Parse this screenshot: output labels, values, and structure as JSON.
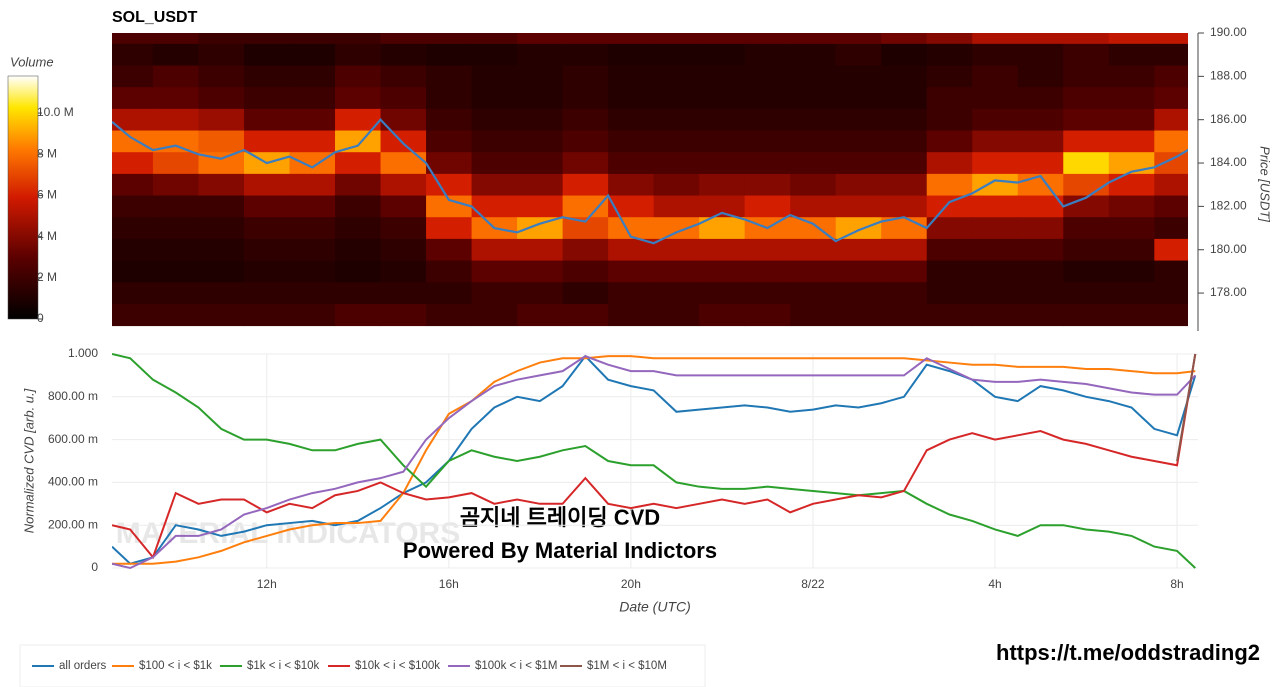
{
  "chart_data": [
    {
      "type": "heatmap",
      "title": "SOL_USDT",
      "y_label": "Price [USDT]",
      "colorbar_title": "Volume",
      "xlim": [
        8.6,
        32.46
      ],
      "ylim": [
        176.25,
        190
      ],
      "yticks": [
        {
          "value": 178,
          "label": "178.00"
        },
        {
          "value": 180,
          "label": "180.00"
        },
        {
          "value": 182,
          "label": "182.00"
        },
        {
          "value": 184,
          "label": "184.00"
        },
        {
          "value": 186,
          "label": "186.00"
        },
        {
          "value": 188,
          "label": "188.00"
        },
        {
          "value": 190,
          "label": "190.00"
        }
      ],
      "colorbar_lim": [
        0,
        11.8
      ],
      "colorbar_ticks": [
        0,
        {
          "value": 2,
          "label": "2 M"
        },
        {
          "value": 4,
          "label": "4 M"
        },
        {
          "value": 6,
          "label": "6 M"
        },
        {
          "value": 8,
          "label": "8 M"
        },
        {
          "value": 10,
          "label": "10.0 M"
        }
      ],
      "colorscale": [
        [
          0,
          "#000000"
        ],
        [
          0.25,
          "#5a0000"
        ],
        [
          0.5,
          "#d11a00"
        ],
        [
          0.7,
          "#ff7a00"
        ],
        [
          0.87,
          "#ffe600"
        ],
        [
          1,
          "#ffffff"
        ]
      ],
      "heat_x": [
        9,
        10,
        11,
        12,
        13,
        14,
        15,
        16,
        17,
        18,
        19,
        20,
        21,
        22,
        23,
        24,
        25,
        26,
        27,
        28,
        29,
        30,
        31,
        32
      ],
      "heat_y": [
        190,
        189,
        188,
        187,
        186,
        185,
        184,
        183,
        182,
        181,
        180,
        179,
        178,
        177
      ],
      "z": [
        [
          2.5,
          2.5,
          2,
          2,
          2,
          2,
          2.5,
          2.5,
          2.5,
          3,
          3,
          3,
          3,
          3,
          3,
          3,
          3,
          3.5,
          4,
          5,
          5,
          5,
          5.5,
          5.5
        ],
        [
          1.5,
          1.2,
          1.5,
          1,
          1,
          1.5,
          1.2,
          1,
          1,
          1.2,
          1.2,
          1,
          1,
          1,
          1.2,
          1.2,
          1.5,
          1,
          1.2,
          1.5,
          1.5,
          2,
          1.5,
          1.5
        ],
        [
          2,
          2.5,
          2,
          1.5,
          1.5,
          2.5,
          2,
          1.5,
          1.2,
          1.2,
          1.5,
          1.2,
          1.2,
          1.2,
          1.2,
          1.2,
          1.2,
          1.2,
          1.5,
          2,
          1.5,
          2,
          2,
          2.5
        ],
        [
          3,
          3,
          2.5,
          2,
          2,
          3,
          2.5,
          1.5,
          1.2,
          1.2,
          1.5,
          1.2,
          1.2,
          1.2,
          1.2,
          1.2,
          1.2,
          1.2,
          2,
          2,
          2,
          2.5,
          2.5,
          3
        ],
        [
          5,
          5,
          4.5,
          3,
          3,
          6,
          3.5,
          2,
          1.5,
          1.5,
          2,
          1.5,
          1.5,
          1.5,
          1.5,
          1.5,
          1.5,
          1.5,
          2,
          2.5,
          2.5,
          3,
          3,
          5
        ],
        [
          8,
          8,
          7.5,
          6,
          6,
          9,
          6,
          2.5,
          2,
          2,
          2.5,
          2,
          2,
          2,
          2,
          2,
          2,
          2,
          3,
          4,
          4,
          6,
          6,
          8
        ],
        [
          6,
          7,
          8,
          9,
          8,
          6,
          8,
          3.5,
          2.5,
          2.5,
          3.5,
          2.5,
          2.5,
          2.5,
          2.5,
          2.5,
          2.5,
          2.5,
          5,
          6,
          6,
          10,
          9,
          7
        ],
        [
          3,
          3.5,
          4,
          5,
          5,
          3.5,
          5,
          6,
          4,
          4,
          6,
          4,
          3.5,
          4,
          4,
          3.5,
          4,
          4,
          8,
          9,
          8,
          7,
          6,
          5
        ],
        [
          2,
          2,
          2,
          3,
          3,
          2,
          3,
          8,
          6,
          6,
          8,
          6,
          5,
          5,
          6,
          5,
          5,
          5,
          6,
          6,
          6,
          4,
          3.5,
          3
        ],
        [
          1.5,
          1.5,
          1.5,
          2,
          2,
          1.5,
          2,
          6,
          8,
          9,
          7,
          8,
          8,
          9,
          8,
          8,
          9,
          8,
          4,
          4,
          4,
          2.5,
          2.5,
          2
        ],
        [
          1.2,
          1.2,
          1.2,
          1.5,
          1.5,
          1.2,
          1.5,
          3,
          5,
          5,
          4,
          5,
          5,
          5,
          5,
          5,
          5,
          5,
          2.5,
          2.5,
          2.5,
          2,
          2,
          6
        ],
        [
          1,
          1,
          1,
          1.2,
          1.2,
          1,
          1.2,
          2,
          3,
          3,
          2.5,
          3,
          3,
          3,
          3,
          3,
          3,
          3,
          1.5,
          1.5,
          1.5,
          1.2,
          1.2,
          1.5
        ],
        [
          1.5,
          1.5,
          1.5,
          1.5,
          1.5,
          1.5,
          1.5,
          1.5,
          2,
          2,
          1.5,
          2,
          2,
          2,
          2,
          2,
          2,
          2,
          1.5,
          1.5,
          1.5,
          1.5,
          1.5,
          1.5
        ],
        [
          2,
          2,
          2,
          2,
          2,
          2.5,
          2.5,
          2,
          2,
          2.5,
          2.5,
          2,
          2,
          2.5,
          2.5,
          2,
          2,
          2,
          2,
          2,
          2,
          2,
          2,
          2
        ]
      ],
      "x": [
        8.6,
        9,
        9.5,
        10,
        10.5,
        11,
        11.5,
        12,
        12.5,
        13,
        13.5,
        14,
        14.5,
        15,
        15.5,
        16,
        16.5,
        17,
        17.5,
        18,
        18.5,
        19,
        19.5,
        20,
        20.5,
        21,
        21.5,
        22,
        22.5,
        23,
        23.5,
        24,
        24.5,
        25,
        25.5,
        26,
        26.5,
        27,
        27.5,
        28,
        28.5,
        29,
        29.5,
        30,
        30.5,
        31,
        31.5,
        32,
        32.4
      ],
      "line_color": "#3a7dc0",
      "values": [
        185.9,
        185.2,
        184.6,
        184.8,
        184.4,
        184.2,
        184.6,
        184.0,
        184.3,
        183.8,
        184.5,
        184.8,
        186.0,
        184.9,
        184.0,
        182.3,
        182.0,
        181.0,
        180.8,
        181.2,
        181.5,
        181.3,
        182.5,
        180.6,
        180.3,
        180.8,
        181.2,
        181.7,
        181.4,
        181.0,
        181.6,
        181.2,
        180.4,
        180.9,
        181.3,
        181.5,
        181.0,
        182.2,
        182.6,
        183.2,
        183.1,
        183.4,
        182.0,
        182.4,
        183.1,
        183.6,
        183.8,
        184.3,
        184.8
      ]
    },
    {
      "type": "line",
      "x_label": "Date (UTC)",
      "y_label": "Normalized CVD [arb. u.]",
      "watermark": "MATERIAL INDICATORS",
      "xlim": [
        8.6,
        32.46
      ],
      "ylim": [
        0,
        1
      ],
      "grid": true,
      "legend": "bottom",
      "xticks": [
        {
          "value": 12,
          "label": "12h"
        },
        {
          "value": 16,
          "label": "16h"
        },
        {
          "value": 20,
          "label": "20h"
        },
        {
          "value": 24,
          "label": "8/22"
        },
        {
          "value": 28,
          "label": "4h"
        },
        {
          "value": 32,
          "label": "8h"
        }
      ],
      "yticks": [
        0,
        {
          "value": 0.2,
          "label": "200.00 m"
        },
        {
          "value": 0.4,
          "label": "400.00 m"
        },
        {
          "value": 0.6,
          "label": "600.00 m"
        },
        {
          "value": 0.8,
          "label": "800.00 m"
        },
        {
          "value": 1,
          "label": "1.000"
        }
      ],
      "x": [
        8.6,
        9,
        9.5,
        10,
        10.5,
        11,
        11.5,
        12,
        12.5,
        13,
        13.5,
        14,
        14.5,
        15,
        15.5,
        16,
        16.5,
        17,
        17.5,
        18,
        18.5,
        19,
        19.5,
        20,
        20.5,
        21,
        21.5,
        22,
        22.5,
        23,
        23.5,
        24,
        24.5,
        25,
        25.5,
        26,
        26.5,
        27,
        27.5,
        28,
        28.5,
        29,
        29.5,
        30,
        30.5,
        31,
        31.5,
        32,
        32.4
      ],
      "series": [
        {
          "name": "all orders",
          "color": "#1f77b4",
          "values": [
            0.1,
            0.02,
            0.05,
            0.2,
            0.18,
            0.15,
            0.17,
            0.2,
            0.21,
            0.22,
            0.2,
            0.22,
            0.28,
            0.35,
            0.4,
            0.5,
            0.65,
            0.75,
            0.8,
            0.78,
            0.85,
            0.99,
            0.88,
            0.85,
            0.83,
            0.73,
            0.74,
            0.75,
            0.76,
            0.75,
            0.73,
            0.74,
            0.76,
            0.75,
            0.77,
            0.8,
            0.95,
            0.92,
            0.88,
            0.8,
            0.78,
            0.85,
            0.83,
            0.8,
            0.78,
            0.75,
            0.65,
            0.62,
            0.9
          ]
        },
        {
          "name": "$100 < i < $1k",
          "color": "#ff7f0e",
          "values": [
            0.02,
            0.02,
            0.02,
            0.03,
            0.05,
            0.08,
            0.12,
            0.15,
            0.18,
            0.2,
            0.21,
            0.21,
            0.22,
            0.35,
            0.55,
            0.72,
            0.78,
            0.87,
            0.92,
            0.96,
            0.98,
            0.98,
            0.99,
            0.99,
            0.98,
            0.98,
            0.98,
            0.98,
            0.98,
            0.98,
            0.98,
            0.98,
            0.98,
            0.98,
            0.98,
            0.98,
            0.97,
            0.96,
            0.95,
            0.95,
            0.94,
            0.94,
            0.94,
            0.93,
            0.93,
            0.92,
            0.91,
            0.91,
            0.92
          ]
        },
        {
          "name": "$1k < i < $10k",
          "color": "#2ca02c",
          "values": [
            1.0,
            0.98,
            0.88,
            0.82,
            0.75,
            0.65,
            0.6,
            0.6,
            0.58,
            0.55,
            0.55,
            0.58,
            0.6,
            0.48,
            0.38,
            0.5,
            0.55,
            0.52,
            0.5,
            0.52,
            0.55,
            0.57,
            0.5,
            0.48,
            0.48,
            0.4,
            0.38,
            0.37,
            0.37,
            0.38,
            0.37,
            0.36,
            0.35,
            0.34,
            0.35,
            0.36,
            0.3,
            0.25,
            0.22,
            0.18,
            0.15,
            0.2,
            0.2,
            0.18,
            0.17,
            0.15,
            0.1,
            0.08,
            0
          ]
        },
        {
          "name": "$10k < i < $100k",
          "color": "#d62728",
          "values": [
            0.2,
            0.18,
            0.05,
            0.35,
            0.3,
            0.32,
            0.32,
            0.26,
            0.3,
            0.28,
            0.34,
            0.36,
            0.4,
            0.35,
            0.32,
            0.33,
            0.35,
            0.3,
            0.32,
            0.3,
            0.3,
            0.42,
            0.3,
            0.28,
            0.3,
            0.28,
            0.3,
            0.32,
            0.3,
            0.32,
            0.26,
            0.3,
            0.32,
            0.34,
            0.33,
            0.36,
            0.55,
            0.6,
            0.63,
            0.6,
            0.62,
            0.64,
            0.6,
            0.58,
            0.55,
            0.52,
            0.5,
            0.48,
            1.0
          ]
        },
        {
          "name": "$100k < i < $1M",
          "color": "#9467bd",
          "values": [
            0.02,
            0,
            0.05,
            0.15,
            0.15,
            0.18,
            0.25,
            0.28,
            0.32,
            0.35,
            0.37,
            0.4,
            0.42,
            0.45,
            0.6,
            0.7,
            0.78,
            0.85,
            0.88,
            0.9,
            0.92,
            0.99,
            0.95,
            0.92,
            0.92,
            0.9,
            0.9,
            0.9,
            0.9,
            0.9,
            0.9,
            0.9,
            0.9,
            0.9,
            0.9,
            0.9,
            0.98,
            0.93,
            0.88,
            0.87,
            0.87,
            0.88,
            0.87,
            0.86,
            0.84,
            0.82,
            0.81,
            0.81,
            0.9
          ]
        },
        {
          "name": "$1M < i < $10M",
          "color": "#8c564b",
          "values": [
            null,
            null,
            null,
            null,
            null,
            null,
            null,
            null,
            null,
            null,
            null,
            null,
            null,
            null,
            null,
            null,
            null,
            null,
            null,
            null,
            null,
            null,
            null,
            null,
            null,
            null,
            null,
            null,
            null,
            null,
            null,
            null,
            null,
            null,
            null,
            null,
            null,
            null,
            null,
            null,
            null,
            null,
            null,
            null,
            null,
            null,
            null,
            0.5,
            1.0
          ]
        }
      ],
      "annotations": [
        "곰지네 트레이딩 CVD",
        "Powered By Material Indictors",
        "https://t.me/oddstrading2"
      ]
    }
  ]
}
